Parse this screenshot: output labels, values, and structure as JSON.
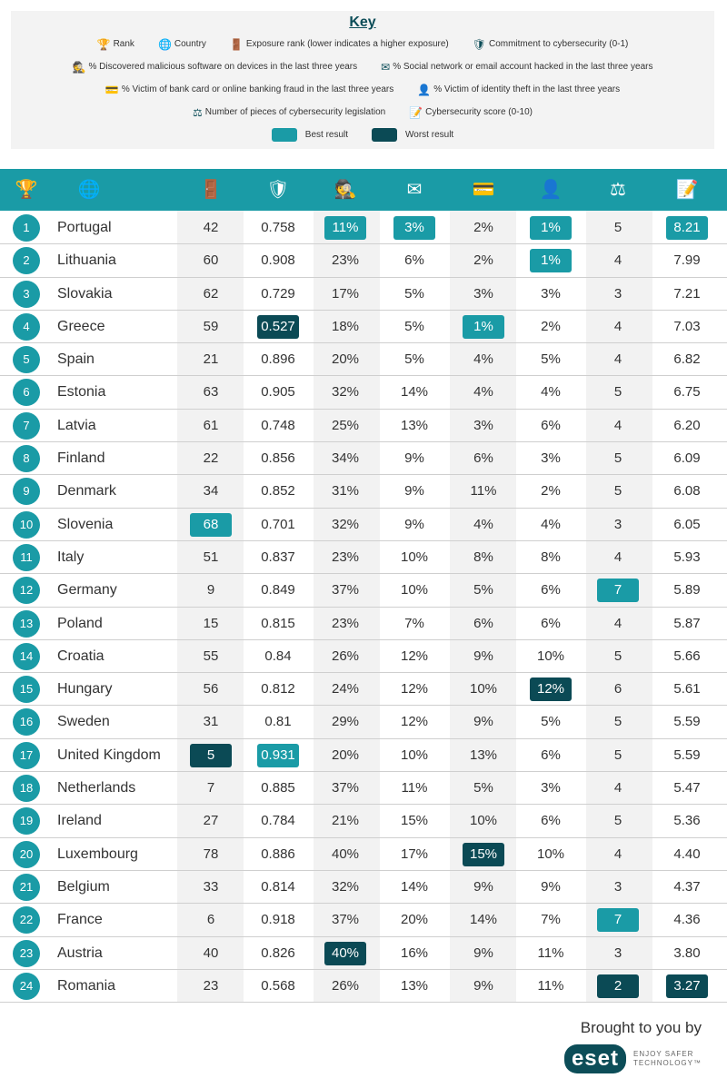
{
  "colors": {
    "best": "#1a9ba6",
    "worst": "#0b4a55",
    "header": "#1a9ba6"
  },
  "key": {
    "title": "Key",
    "items": [
      {
        "icon": "trophy-icon",
        "label": "Rank"
      },
      {
        "icon": "globe-icon",
        "label": "Country"
      },
      {
        "icon": "door-icon",
        "label": "Exposure rank (lower indicates a higher exposure)"
      },
      {
        "icon": "shield-check-icon",
        "label": "Commitment to cybersecurity (0-1)"
      },
      {
        "icon": "spy-icon",
        "label": "% Discovered malicious software on devices in the last three years"
      },
      {
        "icon": "envelope-icon",
        "label": "% Social network or email account hacked in the last three years"
      },
      {
        "icon": "card-icon",
        "label": "% Victim of bank card or online banking fraud in the last three years"
      },
      {
        "icon": "user-shield-icon",
        "label": "% Victim of identity theft in the last three years"
      },
      {
        "icon": "legislation-icon",
        "label": "Number of pieces of cybersecurity legislation"
      },
      {
        "icon": "score-icon",
        "label": "Cybersecurity score (0-10)"
      }
    ],
    "best_label": "Best result",
    "worst_label": "Worst result"
  },
  "chart_data": {
    "type": "table",
    "columns": [
      "Rank",
      "Country",
      "Exposure rank",
      "Commitment to cybersecurity",
      "% Malicious software",
      "% Social/email hacked",
      "% Bank card fraud",
      "% Identity theft",
      "Cybersecurity legislation",
      "Cybersecurity score"
    ],
    "rows": [
      {
        "rank": "1",
        "country": "Portugal",
        "v": [
          "42",
          "0.758",
          "11%",
          "3%",
          "2%",
          "1%",
          "5",
          "8.21"
        ],
        "h": {
          "2": "best",
          "3": "best",
          "5": "best",
          "7": "best"
        }
      },
      {
        "rank": "2",
        "country": "Lithuania",
        "v": [
          "60",
          "0.908",
          "23%",
          "6%",
          "2%",
          "1%",
          "4",
          "7.99"
        ],
        "h": {
          "5": "best"
        }
      },
      {
        "rank": "3",
        "country": "Slovakia",
        "v": [
          "62",
          "0.729",
          "17%",
          "5%",
          "3%",
          "3%",
          "3",
          "7.21"
        ],
        "h": {}
      },
      {
        "rank": "4",
        "country": "Greece",
        "v": [
          "59",
          "0.527",
          "18%",
          "5%",
          "1%",
          "2%",
          "4",
          "7.03"
        ],
        "h": {
          "1": "worst",
          "4": "best"
        }
      },
      {
        "rank": "5",
        "country": "Spain",
        "v": [
          "21",
          "0.896",
          "20%",
          "5%",
          "4%",
          "5%",
          "4",
          "6.82"
        ],
        "h": {}
      },
      {
        "rank": "6",
        "country": "Estonia",
        "v": [
          "63",
          "0.905",
          "32%",
          "14%",
          "4%",
          "4%",
          "5",
          "6.75"
        ],
        "h": {}
      },
      {
        "rank": "7",
        "country": "Latvia",
        "v": [
          "61",
          "0.748",
          "25%",
          "13%",
          "3%",
          "6%",
          "4",
          "6.20"
        ],
        "h": {}
      },
      {
        "rank": "8",
        "country": "Finland",
        "v": [
          "22",
          "0.856",
          "34%",
          "9%",
          "6%",
          "3%",
          "5",
          "6.09"
        ],
        "h": {}
      },
      {
        "rank": "9",
        "country": "Denmark",
        "v": [
          "34",
          "0.852",
          "31%",
          "9%",
          "11%",
          "2%",
          "5",
          "6.08"
        ],
        "h": {}
      },
      {
        "rank": "10",
        "country": "Slovenia",
        "v": [
          "68",
          "0.701",
          "32%",
          "9%",
          "4%",
          "4%",
          "3",
          "6.05"
        ],
        "h": {
          "0": "best"
        }
      },
      {
        "rank": "11",
        "country": "Italy",
        "v": [
          "51",
          "0.837",
          "23%",
          "10%",
          "8%",
          "8%",
          "4",
          "5.93"
        ],
        "h": {}
      },
      {
        "rank": "12",
        "country": "Germany",
        "v": [
          "9",
          "0.849",
          "37%",
          "10%",
          "5%",
          "6%",
          "7",
          "5.89"
        ],
        "h": {
          "6": "best"
        }
      },
      {
        "rank": "13",
        "country": "Poland",
        "v": [
          "15",
          "0.815",
          "23%",
          "7%",
          "6%",
          "6%",
          "4",
          "5.87"
        ],
        "h": {}
      },
      {
        "rank": "14",
        "country": "Croatia",
        "v": [
          "55",
          "0.84",
          "26%",
          "12%",
          "9%",
          "10%",
          "5",
          "5.66"
        ],
        "h": {}
      },
      {
        "rank": "15",
        "country": "Hungary",
        "v": [
          "56",
          "0.812",
          "24%",
          "12%",
          "10%",
          "12%",
          "6",
          "5.61"
        ],
        "h": {
          "5": "worst"
        }
      },
      {
        "rank": "16",
        "country": "Sweden",
        "v": [
          "31",
          "0.81",
          "29%",
          "12%",
          "9%",
          "5%",
          "5",
          "5.59"
        ],
        "h": {}
      },
      {
        "rank": "17",
        "country": "United Kingdom",
        "v": [
          "5",
          "0.931",
          "20%",
          "10%",
          "13%",
          "6%",
          "5",
          "5.59"
        ],
        "h": {
          "0": "worst",
          "1": "best"
        }
      },
      {
        "rank": "18",
        "country": "Netherlands",
        "v": [
          "7",
          "0.885",
          "37%",
          "11%",
          "5%",
          "3%",
          "4",
          "5.47"
        ],
        "h": {}
      },
      {
        "rank": "19",
        "country": "Ireland",
        "v": [
          "27",
          "0.784",
          "21%",
          "15%",
          "10%",
          "6%",
          "5",
          "5.36"
        ],
        "h": {}
      },
      {
        "rank": "20",
        "country": "Luxembourg",
        "v": [
          "78",
          "0.886",
          "40%",
          "17%",
          "15%",
          "10%",
          "4",
          "4.40"
        ],
        "h": {
          "4": "worst"
        }
      },
      {
        "rank": "21",
        "country": "Belgium",
        "v": [
          "33",
          "0.814",
          "32%",
          "14%",
          "9%",
          "9%",
          "3",
          "4.37"
        ],
        "h": {}
      },
      {
        "rank": "22",
        "country": "France",
        "v": [
          "6",
          "0.918",
          "37%",
          "20%",
          "14%",
          "7%",
          "7",
          "4.36"
        ],
        "h": {
          "6": "best"
        }
      },
      {
        "rank": "23",
        "country": "Austria",
        "v": [
          "40",
          "0.826",
          "40%",
          "16%",
          "9%",
          "11%",
          "3",
          "3.80"
        ],
        "h": {
          "2": "worst"
        }
      },
      {
        "rank": "24",
        "country": "Romania",
        "v": [
          "23",
          "0.568",
          "26%",
          "13%",
          "9%",
          "11%",
          "2",
          "3.27"
        ],
        "h": {
          "6": "worst",
          "7": "worst"
        }
      }
    ]
  },
  "footer": {
    "brought_by": "Brought to you by",
    "logo_text": "eset",
    "tagline": "ENJOY SAFER TECHNOLOGY™"
  }
}
